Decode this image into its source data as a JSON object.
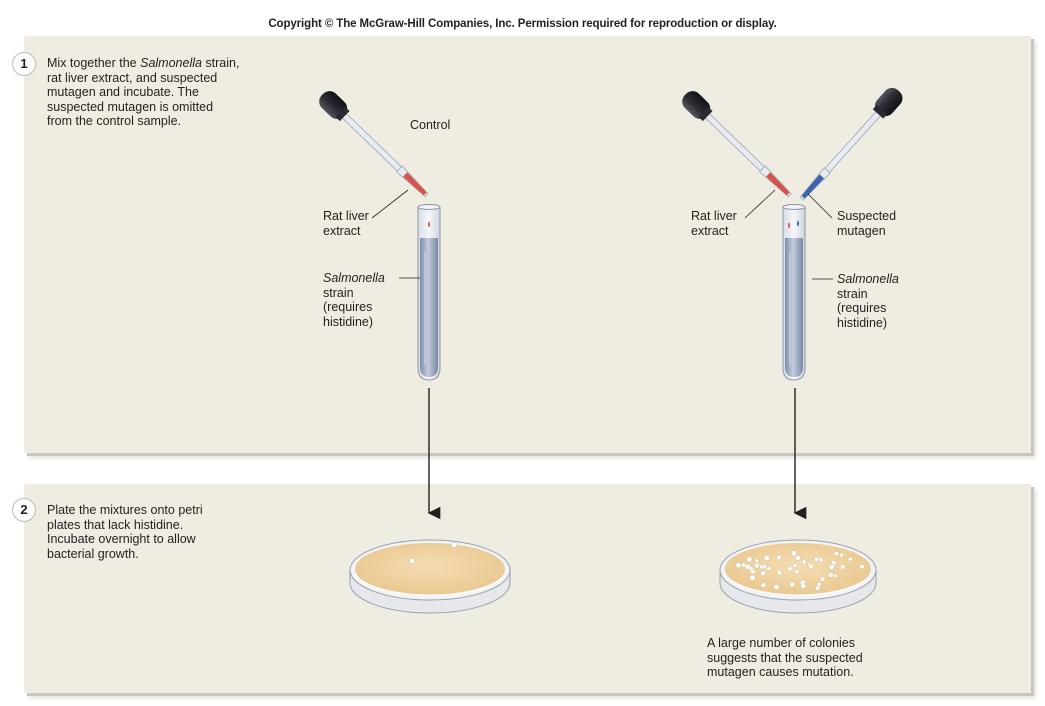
{
  "copyright": "Copyright © The McGraw-Hill Companies, Inc. Permission required for reproduction or display.",
  "step1": {
    "number": "1",
    "text_lines": [
      "Mix together the ",
      "Salmonella",
      " strain,",
      "rat liver extract, and suspected",
      "mutagen and incubate. The",
      "suspected mutagen is omitted",
      "from the control sample."
    ]
  },
  "step2": {
    "number": "2",
    "text_lines": [
      "Plate the mixtures onto petri",
      "plates that lack histidine.",
      "Incubate overnight to allow",
      "bacterial growth."
    ]
  },
  "control": {
    "title": "Control",
    "rat_liver_1": "Rat liver",
    "rat_liver_2": "extract",
    "salmonella_1": "Salmonella",
    "salmonella_2": "strain",
    "salmonella_3": "(requires",
    "salmonella_4": "histidine)"
  },
  "test": {
    "rat_liver_1": "Rat liver",
    "rat_liver_2": "extract",
    "mutagen_1": "Suspected",
    "mutagen_2": "mutagen",
    "salmonella_1": "Salmonella",
    "salmonella_2": "strain",
    "salmonella_3": "(requires",
    "salmonella_4": "histidine)"
  },
  "conclusion": {
    "line1": "A large number of colonies",
    "line2": "suggests that the suspected",
    "line3": "mutagen causes mutation."
  },
  "colors": {
    "panel": "#efede2",
    "agar": "#efd2a0",
    "liquid": "#aab6cc",
    "red_extract": "#d8544a",
    "blue_mutagen": "#3d62b0",
    "dropper_bulb": "#2a2a32"
  },
  "results": {
    "control_plate_colonies": 2,
    "test_plate_colonies": 45
  }
}
